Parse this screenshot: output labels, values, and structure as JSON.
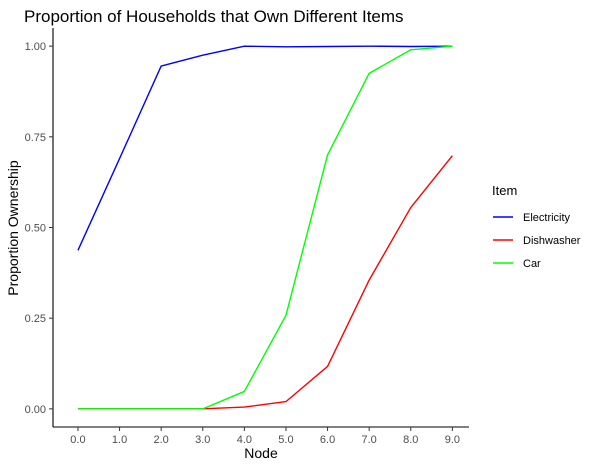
{
  "chart_data": {
    "type": "line",
    "title": "Proportion of Households that Own Different Items",
    "xlabel": "Node",
    "ylabel": "Proportion Ownership",
    "x": [
      0,
      1,
      2,
      3,
      4,
      5,
      6,
      7,
      8,
      9
    ],
    "x_tick_labels": [
      "0.0",
      "1.0",
      "2.0",
      "3.0",
      "4.0",
      "5.0",
      "6.0",
      "7.0",
      "8.0",
      "9.0"
    ],
    "y_ticks": [
      0,
      0.25,
      0.5,
      0.75,
      1.0
    ],
    "y_tick_labels": [
      "0.00",
      "0.25",
      "0.50",
      "0.75",
      "1.00"
    ],
    "xlim": [
      -0.6,
      9.4
    ],
    "ylim": [
      -0.05,
      1.05
    ],
    "grid": false,
    "legend": {
      "title": "Item",
      "placement": "right"
    },
    "series": [
      {
        "name": "Electricity",
        "color": "#0000ff",
        "values": [
          0.437,
          0.69,
          0.945,
          0.975,
          1.0,
          0.998,
          0.999,
          1.0,
          0.999,
          1.0
        ]
      },
      {
        "name": "Dishwasher",
        "color": "#ff0000",
        "values": [
          0.0,
          0.0,
          0.0,
          0.0,
          0.005,
          0.02,
          0.117,
          0.355,
          0.555,
          0.698
        ]
      },
      {
        "name": "Car",
        "color": "#00ff00",
        "values": [
          0.0,
          0.0,
          0.0,
          0.0,
          0.048,
          0.258,
          0.7,
          0.925,
          0.99,
          1.0
        ]
      }
    ]
  }
}
